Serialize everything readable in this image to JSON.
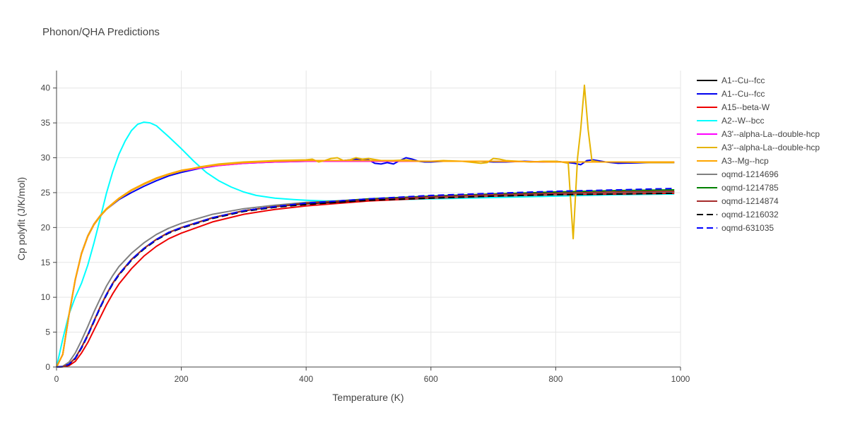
{
  "chart_data": {
    "type": "line",
    "title": "Phonon/QHA Predictions",
    "xlabel": "Temperature (K)",
    "ylabel": "Cp polyfit (J/K/mol)",
    "xlim": [
      0,
      1000
    ],
    "ylim": [
      0,
      42.5
    ],
    "xticks": [
      0,
      200,
      400,
      600,
      800,
      1000
    ],
    "yticks": [
      0,
      5,
      10,
      15,
      20,
      25,
      30,
      35,
      40
    ],
    "grid": true,
    "legend_position": "right",
    "series": [
      {
        "name": "A1--Cu--fcc",
        "color": "#000000",
        "dash": "solid",
        "x": [
          0,
          10,
          20,
          30,
          40,
          50,
          60,
          70,
          80,
          90,
          100,
          120,
          140,
          160,
          180,
          200,
          250,
          300,
          350,
          400,
          500,
          600,
          700,
          800,
          900,
          990
        ],
        "y": [
          0,
          0.05,
          0.4,
          1.3,
          2.8,
          4.6,
          6.6,
          8.6,
          10.4,
          12.0,
          13.3,
          15.4,
          17.0,
          18.3,
          19.3,
          20.0,
          21.4,
          22.4,
          23.0,
          23.4,
          23.9,
          24.3,
          24.6,
          24.8,
          25.0,
          25.1
        ]
      },
      {
        "name": "A1--Cu--fcc",
        "color": "#0000ee",
        "dash": "solid",
        "x": [
          0,
          10,
          20,
          30,
          40,
          50,
          60,
          70,
          80,
          100,
          120,
          140,
          160,
          180,
          200,
          230,
          260,
          300,
          350,
          400,
          420,
          440,
          460,
          480,
          500,
          510,
          520,
          530,
          540,
          550,
          560,
          570,
          580,
          590,
          600,
          620,
          650,
          680,
          700,
          720,
          750,
          780,
          800,
          810,
          820,
          830,
          840,
          850,
          860,
          880,
          900,
          950,
          990
        ],
        "y": [
          0,
          1.8,
          7.5,
          12.5,
          16.3,
          18.8,
          20.5,
          21.7,
          22.6,
          24.0,
          25.0,
          25.9,
          26.7,
          27.4,
          27.9,
          28.5,
          28.9,
          29.2,
          29.4,
          29.5,
          29.6,
          29.5,
          29.6,
          29.8,
          29.7,
          29.2,
          29.1,
          29.3,
          29.1,
          29.6,
          30.0,
          29.8,
          29.5,
          29.4,
          29.4,
          29.5,
          29.5,
          29.5,
          29.4,
          29.4,
          29.5,
          29.4,
          29.5,
          29.4,
          29.3,
          29.2,
          29.0,
          29.6,
          29.7,
          29.4,
          29.2,
          29.3,
          29.3
        ]
      },
      {
        "name": "A15--beta-W",
        "color": "#ee0000",
        "dash": "solid",
        "x": [
          0,
          10,
          20,
          30,
          40,
          50,
          60,
          70,
          80,
          90,
          100,
          120,
          140,
          160,
          180,
          200,
          250,
          300,
          350,
          400,
          500,
          600,
          700,
          800,
          900,
          990
        ],
        "y": [
          0,
          0.02,
          0.2,
          0.8,
          2.0,
          3.5,
          5.3,
          7.1,
          8.9,
          10.5,
          11.9,
          14.1,
          15.9,
          17.3,
          18.4,
          19.2,
          20.8,
          21.9,
          22.6,
          23.1,
          23.8,
          24.2,
          24.5,
          24.7,
          24.8,
          24.9
        ]
      },
      {
        "name": "A2--W--bcc",
        "color": "#00ffff",
        "dash": "solid",
        "x": [
          0,
          10,
          20,
          30,
          40,
          50,
          60,
          70,
          80,
          90,
          100,
          110,
          120,
          130,
          140,
          150,
          160,
          170,
          180,
          200,
          220,
          240,
          260,
          280,
          300,
          320,
          350,
          380,
          400,
          430,
          450,
          500,
          600,
          700,
          800,
          900,
          990
        ],
        "y": [
          0,
          4.0,
          7.6,
          10.0,
          12.0,
          14.6,
          17.8,
          21.3,
          24.9,
          28.0,
          30.5,
          32.4,
          33.9,
          34.8,
          35.1,
          35.0,
          34.6,
          33.8,
          33.0,
          31.3,
          29.5,
          27.9,
          26.7,
          25.8,
          25.1,
          24.6,
          24.2,
          24.0,
          23.9,
          23.8,
          23.8,
          23.9,
          24.1,
          24.3,
          24.5,
          24.7,
          24.8
        ]
      },
      {
        "name": "A3'--alpha-La--double-hcp",
        "color": "#ff00ff",
        "dash": "solid",
        "x": [
          0,
          10,
          20,
          30,
          40,
          50,
          60,
          70,
          80,
          100,
          120,
          140,
          160,
          180,
          200,
          250,
          300,
          350,
          400,
          500,
          600,
          700,
          800,
          900,
          990
        ],
        "y": [
          0,
          1.8,
          7.5,
          12.5,
          16.2,
          18.7,
          20.4,
          21.6,
          22.6,
          24.1,
          25.3,
          26.2,
          27.0,
          27.6,
          28.1,
          28.8,
          29.2,
          29.4,
          29.5,
          29.5,
          29.5,
          29.5,
          29.4,
          29.4,
          29.4
        ]
      },
      {
        "name": "A3'--alpha-La--double-hcp",
        "color": "#e6b400",
        "dash": "solid",
        "x": [
          0,
          10,
          20,
          30,
          40,
          50,
          60,
          70,
          80,
          100,
          120,
          140,
          160,
          180,
          200,
          230,
          260,
          300,
          350,
          400,
          410,
          420,
          430,
          440,
          450,
          460,
          470,
          480,
          490,
          500,
          520,
          540,
          560,
          580,
          600,
          620,
          650,
          670,
          680,
          690,
          700,
          710,
          720,
          740,
          760,
          780,
          800,
          810,
          820,
          828,
          835,
          840,
          846,
          852,
          858,
          870,
          900,
          950,
          990
        ],
        "y": [
          0,
          1.8,
          7.5,
          12.5,
          16.2,
          18.7,
          20.4,
          21.6,
          22.6,
          24.1,
          25.3,
          26.2,
          27.0,
          27.6,
          28.1,
          28.7,
          29.1,
          29.4,
          29.6,
          29.7,
          29.8,
          29.4,
          29.6,
          29.9,
          30.0,
          29.6,
          29.7,
          30.0,
          29.8,
          29.9,
          29.6,
          29.6,
          29.7,
          29.5,
          29.5,
          29.6,
          29.5,
          29.3,
          29.2,
          29.3,
          29.9,
          29.8,
          29.6,
          29.5,
          29.4,
          29.5,
          29.5,
          29.4,
          29.2,
          18.4,
          30.0,
          34.0,
          40.4,
          34.0,
          29.6,
          29.4,
          29.4,
          29.3,
          29.3
        ]
      },
      {
        "name": "A3--Mg--hcp",
        "color": "#ffa500",
        "dash": "solid",
        "x": [
          0,
          10,
          20,
          30,
          40,
          50,
          60,
          70,
          80,
          100,
          120,
          140,
          160,
          180,
          200,
          250,
          300,
          350,
          400,
          500,
          600,
          700,
          800,
          900,
          990
        ],
        "y": [
          0,
          1.8,
          7.6,
          12.6,
          16.3,
          18.8,
          20.5,
          21.7,
          22.7,
          24.2,
          25.4,
          26.3,
          27.1,
          27.7,
          28.2,
          28.9,
          29.3,
          29.5,
          29.6,
          29.6,
          29.5,
          29.5,
          29.4,
          29.4,
          29.4
        ]
      },
      {
        "name": "oqmd-1214696",
        "color": "#808080",
        "dash": "solid",
        "x": [
          0,
          10,
          20,
          30,
          40,
          50,
          60,
          70,
          80,
          90,
          100,
          120,
          140,
          160,
          180,
          200,
          250,
          300,
          350,
          400,
          500,
          600,
          700,
          800,
          900,
          990
        ],
        "y": [
          0,
          0.1,
          0.7,
          2.0,
          3.8,
          5.8,
          7.9,
          9.8,
          11.6,
          13.1,
          14.4,
          16.3,
          17.8,
          19.0,
          19.9,
          20.6,
          21.9,
          22.7,
          23.2,
          23.6,
          24.0,
          24.3,
          24.6,
          24.8,
          25.0,
          25.1
        ]
      },
      {
        "name": "oqmd-1214785",
        "color": "#008000",
        "dash": "solid",
        "x": [
          0,
          10,
          20,
          30,
          40,
          50,
          60,
          70,
          80,
          90,
          100,
          120,
          140,
          160,
          180,
          200,
          250,
          300,
          350,
          400,
          500,
          600,
          700,
          800,
          900,
          990
        ],
        "y": [
          0,
          0.05,
          0.4,
          1.3,
          2.8,
          4.6,
          6.6,
          8.6,
          10.4,
          12.0,
          13.3,
          15.4,
          17.0,
          18.3,
          19.3,
          20.0,
          21.4,
          22.4,
          23.0,
          23.5,
          24.1,
          24.5,
          24.8,
          25.1,
          25.3,
          25.4
        ]
      },
      {
        "name": "oqmd-1214874",
        "color": "#a52a2a",
        "dash": "solid",
        "x": [
          0,
          10,
          20,
          30,
          40,
          50,
          60,
          70,
          80,
          90,
          100,
          120,
          140,
          160,
          180,
          200,
          250,
          300,
          350,
          400,
          500,
          600,
          700,
          800,
          900,
          990
        ],
        "y": [
          0,
          0.05,
          0.4,
          1.3,
          2.8,
          4.6,
          6.6,
          8.6,
          10.4,
          12.0,
          13.3,
          15.4,
          17.0,
          18.3,
          19.3,
          20.0,
          21.4,
          22.4,
          23.0,
          23.5,
          24.0,
          24.4,
          24.7,
          24.9,
          25.1,
          25.2
        ]
      },
      {
        "name": "oqmd-1216032",
        "color": "#000000",
        "dash": "dash",
        "x": [
          0,
          10,
          20,
          30,
          40,
          50,
          60,
          70,
          80,
          90,
          100,
          120,
          140,
          160,
          180,
          200,
          250,
          300,
          350,
          400,
          500,
          600,
          700,
          800,
          900,
          990
        ],
        "y": [
          0,
          0.05,
          0.35,
          1.2,
          2.7,
          4.5,
          6.5,
          8.5,
          10.3,
          11.9,
          13.2,
          15.3,
          16.9,
          18.2,
          19.2,
          19.9,
          21.3,
          22.3,
          22.9,
          23.3,
          23.9,
          24.2,
          24.5,
          24.7,
          24.8,
          24.9
        ]
      },
      {
        "name": "oqmd-631035",
        "color": "#0000ff",
        "dash": "dash",
        "x": [
          0,
          10,
          20,
          30,
          40,
          50,
          60,
          70,
          80,
          90,
          100,
          120,
          140,
          160,
          180,
          200,
          250,
          300,
          350,
          400,
          500,
          600,
          700,
          800,
          900,
          990
        ],
        "y": [
          0,
          0.05,
          0.4,
          1.3,
          2.8,
          4.6,
          6.6,
          8.6,
          10.4,
          12.0,
          13.3,
          15.4,
          17.0,
          18.3,
          19.3,
          20.0,
          21.4,
          22.4,
          23.0,
          23.5,
          24.1,
          24.6,
          24.9,
          25.2,
          25.4,
          25.6
        ]
      }
    ]
  },
  "colors": {
    "grid": "#e5e5e5",
    "axis": "#444444",
    "text": "#444444",
    "background": "#ffffff"
  }
}
